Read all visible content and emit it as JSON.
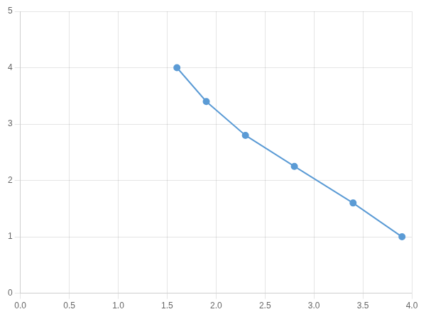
{
  "chart_data": {
    "type": "line",
    "x": [
      1.6,
      1.9,
      2.3,
      2.8,
      3.4,
      3.9
    ],
    "values": [
      4.0,
      3.4,
      2.8,
      2.25,
      1.6,
      1.0
    ],
    "color": "#5b9bd5",
    "marker": "circle",
    "xlim": [
      0,
      4
    ],
    "ylim": [
      0,
      5
    ],
    "xticks": [
      {
        "value": 0,
        "label": "0.0"
      },
      0.5,
      {
        "value": 1,
        "label": "1.0"
      },
      1.5,
      {
        "value": 2,
        "label": "2.0"
      },
      2.5,
      {
        "value": 3,
        "label": "3.0"
      },
      3.5,
      {
        "value": 4,
        "label": "4.0"
      }
    ],
    "yticks": [
      0,
      1,
      2,
      3,
      4,
      5
    ],
    "grid": true
  }
}
